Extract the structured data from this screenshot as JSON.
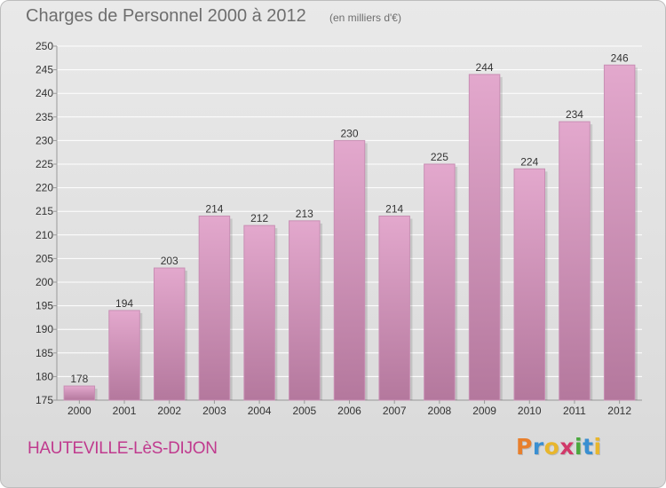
{
  "header": {
    "title": "Charges de Personnel 2000 à 2012",
    "subtitle": "(en milliers d'€)"
  },
  "footer": {
    "commune": "HAUTEVILLE-LèS-DIJON",
    "logo": {
      "letters": [
        "P",
        "r",
        "o",
        "x",
        "i",
        "t",
        "i"
      ],
      "colors": [
        "#e87f2c",
        "#3a8fd1",
        "#e8b62c",
        "#d1396a",
        "#4aa83d",
        "#3a8fd1",
        "#e8b62c"
      ]
    }
  },
  "colors": {
    "bar_fill_top": "#e3a8cd",
    "bar_fill_bottom": "#b4789d",
    "bar_stroke": "#c88fb4",
    "grid": "#ffffff",
    "axis_text": "#333333",
    "commune_text": "#c03a8e"
  },
  "chart_data": {
    "type": "bar",
    "categories": [
      "2000",
      "2001",
      "2002",
      "2003",
      "2004",
      "2005",
      "2006",
      "2007",
      "2008",
      "2009",
      "2010",
      "2011",
      "2012"
    ],
    "values": [
      178,
      194,
      203,
      214,
      212,
      213,
      230,
      214,
      225,
      244,
      224,
      234,
      246
    ],
    "ylim": [
      175,
      250
    ],
    "yticks": [
      175,
      180,
      185,
      190,
      195,
      200,
      205,
      210,
      215,
      220,
      225,
      230,
      235,
      240,
      245,
      250
    ],
    "grid": true,
    "data_labels": true,
    "xlabel": "",
    "ylabel": ""
  }
}
